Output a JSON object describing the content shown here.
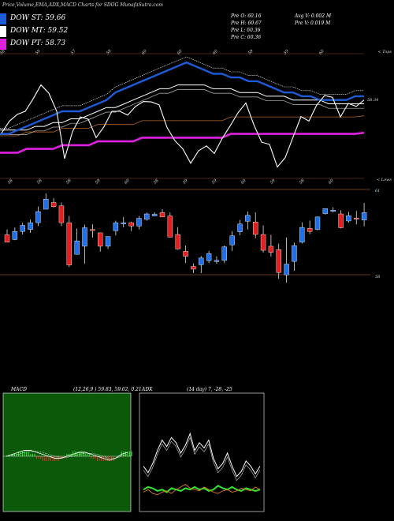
{
  "header": {
    "title": "Price,Volume,EMA,ADX,MACD Charts for SDOG MunafaSutra.com"
  },
  "legend": [
    {
      "label": "DOW ST: 59.66",
      "color": "#1e5bd8"
    },
    {
      "label": "DOW MT: 59.52",
      "color": "#ffffff"
    },
    {
      "label": "DOW PT: 58.73",
      "color": "#e020e0"
    }
  ],
  "info": {
    "open": "Pre  O: 60.16",
    "high": "Pre  H: 60.67",
    "low": "Pre  L: 60.36",
    "close": "Pre  C: 60.36",
    "avg_vol": "Avg V: 0.002  M",
    "pre_vol": "Pre  V: 0.019 M"
  },
  "price_panel": {
    "last_price_label": "58.34",
    "top_label": "< Tops",
    "lows_label": "< Lows",
    "top_ticks": [
      "58",
      "59",
      "57",
      "59",
      "60",
      "60",
      "60",
      "59",
      "59",
      "60"
    ],
    "low_ticks": [
      "58",
      "58",
      "58",
      "59",
      "60",
      "58",
      "59",
      "59",
      "60",
      "59",
      "58",
      "60"
    ]
  },
  "candle_panel": {
    "upper_label": "61",
    "lower_label": "58"
  },
  "macd": {
    "label": "MACD",
    "params": "(12,26,9 ) 59.83, 59.62, 0.21"
  },
  "adx": {
    "label": "ADX",
    "params": "(14  day) 7, -28, -25"
  },
  "colors": {
    "up": "#1e6fe8",
    "down": "#e41e1e",
    "st": "#1e5bd8",
    "mt": "#ffffff",
    "pt": "#e020e0",
    "panel_line": "#8a4a1e",
    "macd_bg": "#0a5a0a"
  },
  "chart_data": [
    {
      "type": "candlestick",
      "title": "SDOG",
      "candles": [
        {
          "o": 58.94,
          "h": 59.1,
          "l": 58.72,
          "c": 58.72
        },
        {
          "o": 58.8,
          "h": 59.16,
          "l": 58.78,
          "c": 59.04
        },
        {
          "o": 59.04,
          "h": 59.3,
          "l": 58.95,
          "c": 59.22
        },
        {
          "o": 59.1,
          "h": 59.4,
          "l": 59.0,
          "c": 59.3
        },
        {
          "o": 59.3,
          "h": 59.78,
          "l": 59.2,
          "c": 59.63
        },
        {
          "o": 59.7,
          "h": 60.17,
          "l": 59.7,
          "c": 60.0
        },
        {
          "o": 59.9,
          "h": 60.03,
          "l": 59.75,
          "c": 59.78
        },
        {
          "o": 59.8,
          "h": 59.9,
          "l": 59.2,
          "c": 59.3
        },
        {
          "o": 59.3,
          "h": 59.5,
          "l": 57.98,
          "c": 58.04
        },
        {
          "o": 58.36,
          "h": 59.13,
          "l": 58.36,
          "c": 58.76
        },
        {
          "o": 58.6,
          "h": 59.24,
          "l": 58.08,
          "c": 59.15
        },
        {
          "o": 59.1,
          "h": 59.25,
          "l": 58.86,
          "c": 59.09
        },
        {
          "o": 59.0,
          "h": 59.0,
          "l": 58.44,
          "c": 58.6
        },
        {
          "o": 58.6,
          "h": 58.89,
          "l": 58.52,
          "c": 58.89
        },
        {
          "o": 59.06,
          "h": 59.36,
          "l": 58.92,
          "c": 59.3
        },
        {
          "o": 59.3,
          "h": 59.47,
          "l": 59.16,
          "c": 59.3
        },
        {
          "o": 59.3,
          "h": 59.33,
          "l": 59.05,
          "c": 59.2
        },
        {
          "o": 59.2,
          "h": 59.5,
          "l": 59.1,
          "c": 59.43
        },
        {
          "o": 59.4,
          "h": 59.6,
          "l": 59.36,
          "c": 59.56
        },
        {
          "o": 59.5,
          "h": 59.61,
          "l": 59.5,
          "c": 59.55
        },
        {
          "o": 59.6,
          "h": 59.7,
          "l": 59.47,
          "c": 59.47
        },
        {
          "o": 59.5,
          "h": 59.6,
          "l": 58.87,
          "c": 58.87
        },
        {
          "o": 58.95,
          "h": 59.17,
          "l": 58.5,
          "c": 58.52
        },
        {
          "o": 58.45,
          "h": 58.62,
          "l": 58.1,
          "c": 58.3
        },
        {
          "o": 58.0,
          "h": 58.09,
          "l": 57.8,
          "c": 57.92
        },
        {
          "o": 58.05,
          "h": 58.31,
          "l": 57.8,
          "c": 58.25
        },
        {
          "o": 58.17,
          "h": 58.46,
          "l": 58.1,
          "c": 58.38
        },
        {
          "o": 58.16,
          "h": 58.3,
          "l": 58.08,
          "c": 58.18
        },
        {
          "o": 58.18,
          "h": 58.62,
          "l": 58.1,
          "c": 58.58
        },
        {
          "o": 58.64,
          "h": 59.05,
          "l": 58.46,
          "c": 58.91
        },
        {
          "o": 59.03,
          "h": 59.38,
          "l": 58.93,
          "c": 59.26
        },
        {
          "o": 59.34,
          "h": 59.63,
          "l": 59.1,
          "c": 59.52
        },
        {
          "o": 59.32,
          "h": 59.61,
          "l": 58.84,
          "c": 58.95
        },
        {
          "o": 58.95,
          "h": 59.22,
          "l": 58.41,
          "c": 58.48
        },
        {
          "o": 58.6,
          "h": 58.94,
          "l": 58.29,
          "c": 58.42
        },
        {
          "o": 58.5,
          "h": 58.68,
          "l": 57.63,
          "c": 57.82
        },
        {
          "o": 57.75,
          "h": 58.86,
          "l": 57.52,
          "c": 58.07
        },
        {
          "o": 58.15,
          "h": 58.71,
          "l": 57.87,
          "c": 58.62
        },
        {
          "o": 58.72,
          "h": 59.31,
          "l": 58.68,
          "c": 59.16
        },
        {
          "o": 59.13,
          "h": 59.36,
          "l": 58.96,
          "c": 59.04
        },
        {
          "o": 59.1,
          "h": 59.48,
          "l": 59.07,
          "c": 59.47
        },
        {
          "o": 59.57,
          "h": 59.72,
          "l": 59.54,
          "c": 59.72
        },
        {
          "o": 59.66,
          "h": 59.76,
          "l": 59.61,
          "c": 59.67
        },
        {
          "o": 59.56,
          "h": 59.67,
          "l": 59.13,
          "c": 59.15
        },
        {
          "o": 59.35,
          "h": 59.62,
          "l": 59.3,
          "c": 59.51
        },
        {
          "o": 59.44,
          "h": 59.65,
          "l": 59.25,
          "c": 59.43
        },
        {
          "o": 59.38,
          "h": 59.89,
          "l": 59.19,
          "c": 59.6
        }
      ]
    },
    {
      "type": "line",
      "title": "Price & EMA",
      "series": [
        {
          "name": "DOW ST",
          "values": [
            58.7,
            58.7,
            58.8,
            58.9,
            59.0,
            59.1,
            59.2,
            59.3,
            59.3,
            59.3,
            59.4,
            59.5,
            59.6,
            59.8,
            59.9,
            60.0,
            60.1,
            60.2,
            60.3,
            60.4,
            60.5,
            60.6,
            60.5,
            60.4,
            60.3,
            60.3,
            60.2,
            60.2,
            60.1,
            60.1,
            60.0,
            59.9,
            59.8,
            59.8,
            59.7,
            59.7,
            59.6,
            59.6,
            59.6,
            59.6,
            59.7,
            59.7
          ]
        },
        {
          "name": "DOW MT",
          "values": [
            58.8,
            58.8,
            58.8,
            58.8,
            58.9,
            58.9,
            59.0,
            59.0,
            59.1,
            59.1,
            59.2,
            59.3,
            59.4,
            59.4,
            59.5,
            59.6,
            59.7,
            59.8,
            59.9,
            59.9,
            60.0,
            60.0,
            60.0,
            60.0,
            59.9,
            59.9,
            59.9,
            59.8,
            59.8,
            59.8,
            59.7,
            59.7,
            59.7,
            59.6,
            59.6,
            59.6,
            59.6,
            59.5,
            59.5,
            59.5,
            59.5,
            59.5
          ]
        },
        {
          "name": "DOW PT",
          "values": [
            58.2,
            58.2,
            58.2,
            58.3,
            58.3,
            58.3,
            58.3,
            58.4,
            58.4,
            58.4,
            58.4,
            58.5,
            58.5,
            58.5,
            58.5,
            58.5,
            58.6,
            58.6,
            58.6,
            58.6,
            58.6,
            58.6,
            58.6,
            58.6,
            58.6,
            58.6,
            58.7,
            58.7,
            58.7,
            58.7,
            58.7,
            58.7,
            58.7,
            58.7,
            58.7,
            58.7,
            58.7,
            58.7,
            58.7,
            58.7,
            58.7,
            58.73
          ]
        }
      ]
    },
    {
      "type": "line",
      "title": "MACD",
      "series": [
        {
          "name": "MACD",
          "values": [
            0.0,
            0.1,
            0.2,
            0.3,
            0.3,
            0.2,
            0.1,
            0.0,
            -0.1,
            -0.1,
            0.0,
            0.1,
            0.2,
            0.2,
            0.1,
            0.0,
            -0.1,
            -0.2,
            -0.1,
            0.1,
            0.2
          ]
        },
        {
          "name": "Signal",
          "values": [
            0.0,
            0.05,
            0.1,
            0.2,
            0.25,
            0.25,
            0.2,
            0.1,
            0.0,
            -0.05,
            -0.05,
            0.0,
            0.1,
            0.15,
            0.15,
            0.1,
            0.0,
            -0.1,
            -0.1,
            0.0,
            0.1
          ]
        }
      ]
    },
    {
      "type": "line",
      "title": "ADX",
      "series": [
        {
          "name": "ADX",
          "values": [
            30,
            25,
            32,
            42,
            50,
            45,
            52,
            48,
            40,
            46,
            55,
            42,
            48,
            44,
            50,
            36,
            28,
            32,
            40,
            30,
            22,
            26,
            34,
            30,
            24,
            30
          ]
        },
        {
          "name": "+DI",
          "values": [
            12,
            14,
            13,
            11,
            12,
            10,
            13,
            12,
            11,
            13,
            12,
            14,
            12,
            13,
            11,
            12,
            15,
            13,
            12,
            14,
            12,
            11,
            13,
            12,
            11,
            12
          ]
        },
        {
          "name": "-DI",
          "values": [
            10,
            12,
            9,
            8,
            10,
            11,
            9,
            12,
            14,
            16,
            13,
            12,
            11,
            14,
            12,
            10,
            9,
            11,
            12,
            10,
            11,
            13,
            12,
            11,
            14,
            12
          ]
        }
      ]
    }
  ]
}
